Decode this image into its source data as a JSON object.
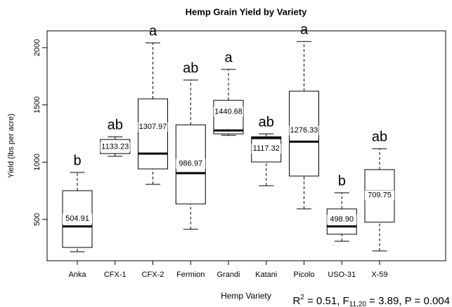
{
  "chart_data": {
    "type": "box",
    "title": "Hemp Grain Yield by Variety",
    "x_label": "Hemp Variety",
    "y_label": "Yield (lbs per acre)",
    "categories": [
      "Anka",
      "CFX-1",
      "CFX-2",
      "Fermion",
      "Grandi",
      "Katani",
      "Picolo",
      "USO-31",
      "X-59"
    ],
    "whisker_low": [
      218,
      1051,
      806,
      414,
      1234,
      794,
      592,
      310,
      225
    ],
    "q1": [
      255,
      1075,
      941,
      635,
      1247,
      1002,
      879,
      371,
      476
    ],
    "median": [
      439,
      1130,
      1075,
      904,
      1277,
      1210,
      1179,
      439,
      745
    ],
    "q3": [
      751,
      1198,
      1553,
      1326,
      1540,
      1222,
      1620,
      592,
      935
    ],
    "whisker_high": [
      910,
      1222,
      2042,
      1718,
      1810,
      1247,
      2054,
      733,
      1118
    ],
    "means": [
      504.91,
      1133.23,
      1307.97,
      986.97,
      1440.68,
      1117.32,
      1276.33,
      498.9,
      709.75
    ],
    "value_labels": [
      "504.91",
      "1133.23",
      "1307.97",
      "986.97",
      "1440.68",
      "1117.32",
      "1276.33",
      "498.90",
      "709.75"
    ],
    "letters": [
      "b",
      "ab",
      "a",
      "ab",
      "a",
      "ab",
      "a",
      "b",
      "ab"
    ],
    "ylim": [
      139,
      2147
    ],
    "yticks": [
      500,
      1000,
      1500,
      2000
    ],
    "color": "#ffffff",
    "annotation": [
      "R",
      "2",
      " = 0.51, F",
      "11,20",
      " = 3.89, P = 0.004"
    ]
  }
}
